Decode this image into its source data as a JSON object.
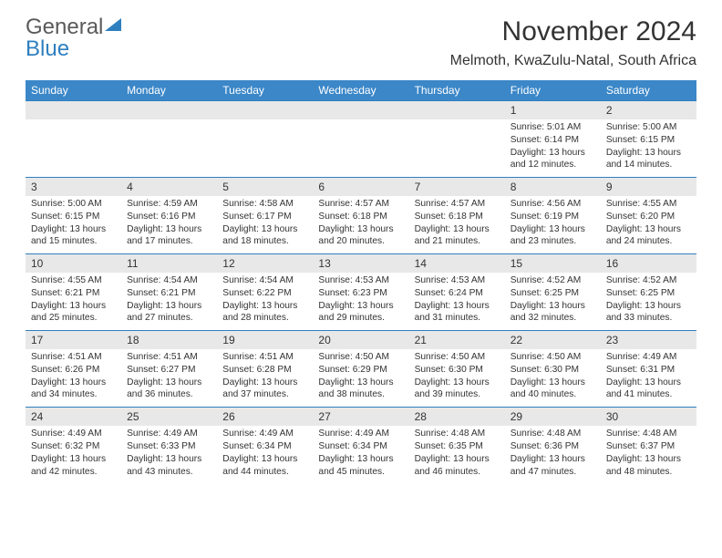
{
  "logo": {
    "line1": "General",
    "line2": "Blue"
  },
  "title": "November 2024",
  "subtitle": "Melmoth, KwaZulu-Natal, South Africa",
  "header_bg": "#3b87c8",
  "header_fg": "#ffffff",
  "daynum_bg": "#e8e8e8",
  "rule_color": "#2f7fbf",
  "text_color": "#333333",
  "logo_accent": "#2f7fbf",
  "day_headers": [
    "Sunday",
    "Monday",
    "Tuesday",
    "Wednesday",
    "Thursday",
    "Friday",
    "Saturday"
  ],
  "weeks": [
    [
      null,
      null,
      null,
      null,
      null,
      {
        "n": "1",
        "sunrise": "5:01 AM",
        "sunset": "6:14 PM",
        "daylight": "13 hours and 12 minutes."
      },
      {
        "n": "2",
        "sunrise": "5:00 AM",
        "sunset": "6:15 PM",
        "daylight": "13 hours and 14 minutes."
      }
    ],
    [
      {
        "n": "3",
        "sunrise": "5:00 AM",
        "sunset": "6:15 PM",
        "daylight": "13 hours and 15 minutes."
      },
      {
        "n": "4",
        "sunrise": "4:59 AM",
        "sunset": "6:16 PM",
        "daylight": "13 hours and 17 minutes."
      },
      {
        "n": "5",
        "sunrise": "4:58 AM",
        "sunset": "6:17 PM",
        "daylight": "13 hours and 18 minutes."
      },
      {
        "n": "6",
        "sunrise": "4:57 AM",
        "sunset": "6:18 PM",
        "daylight": "13 hours and 20 minutes."
      },
      {
        "n": "7",
        "sunrise": "4:57 AM",
        "sunset": "6:18 PM",
        "daylight": "13 hours and 21 minutes."
      },
      {
        "n": "8",
        "sunrise": "4:56 AM",
        "sunset": "6:19 PM",
        "daylight": "13 hours and 23 minutes."
      },
      {
        "n": "9",
        "sunrise": "4:55 AM",
        "sunset": "6:20 PM",
        "daylight": "13 hours and 24 minutes."
      }
    ],
    [
      {
        "n": "10",
        "sunrise": "4:55 AM",
        "sunset": "6:21 PM",
        "daylight": "13 hours and 25 minutes."
      },
      {
        "n": "11",
        "sunrise": "4:54 AM",
        "sunset": "6:21 PM",
        "daylight": "13 hours and 27 minutes."
      },
      {
        "n": "12",
        "sunrise": "4:54 AM",
        "sunset": "6:22 PM",
        "daylight": "13 hours and 28 minutes."
      },
      {
        "n": "13",
        "sunrise": "4:53 AM",
        "sunset": "6:23 PM",
        "daylight": "13 hours and 29 minutes."
      },
      {
        "n": "14",
        "sunrise": "4:53 AM",
        "sunset": "6:24 PM",
        "daylight": "13 hours and 31 minutes."
      },
      {
        "n": "15",
        "sunrise": "4:52 AM",
        "sunset": "6:25 PM",
        "daylight": "13 hours and 32 minutes."
      },
      {
        "n": "16",
        "sunrise": "4:52 AM",
        "sunset": "6:25 PM",
        "daylight": "13 hours and 33 minutes."
      }
    ],
    [
      {
        "n": "17",
        "sunrise": "4:51 AM",
        "sunset": "6:26 PM",
        "daylight": "13 hours and 34 minutes."
      },
      {
        "n": "18",
        "sunrise": "4:51 AM",
        "sunset": "6:27 PM",
        "daylight": "13 hours and 36 minutes."
      },
      {
        "n": "19",
        "sunrise": "4:51 AM",
        "sunset": "6:28 PM",
        "daylight": "13 hours and 37 minutes."
      },
      {
        "n": "20",
        "sunrise": "4:50 AM",
        "sunset": "6:29 PM",
        "daylight": "13 hours and 38 minutes."
      },
      {
        "n": "21",
        "sunrise": "4:50 AM",
        "sunset": "6:30 PM",
        "daylight": "13 hours and 39 minutes."
      },
      {
        "n": "22",
        "sunrise": "4:50 AM",
        "sunset": "6:30 PM",
        "daylight": "13 hours and 40 minutes."
      },
      {
        "n": "23",
        "sunrise": "4:49 AM",
        "sunset": "6:31 PM",
        "daylight": "13 hours and 41 minutes."
      }
    ],
    [
      {
        "n": "24",
        "sunrise": "4:49 AM",
        "sunset": "6:32 PM",
        "daylight": "13 hours and 42 minutes."
      },
      {
        "n": "25",
        "sunrise": "4:49 AM",
        "sunset": "6:33 PM",
        "daylight": "13 hours and 43 minutes."
      },
      {
        "n": "26",
        "sunrise": "4:49 AM",
        "sunset": "6:34 PM",
        "daylight": "13 hours and 44 minutes."
      },
      {
        "n": "27",
        "sunrise": "4:49 AM",
        "sunset": "6:34 PM",
        "daylight": "13 hours and 45 minutes."
      },
      {
        "n": "28",
        "sunrise": "4:48 AM",
        "sunset": "6:35 PM",
        "daylight": "13 hours and 46 minutes."
      },
      {
        "n": "29",
        "sunrise": "4:48 AM",
        "sunset": "6:36 PM",
        "daylight": "13 hours and 47 minutes."
      },
      {
        "n": "30",
        "sunrise": "4:48 AM",
        "sunset": "6:37 PM",
        "daylight": "13 hours and 48 minutes."
      }
    ]
  ]
}
